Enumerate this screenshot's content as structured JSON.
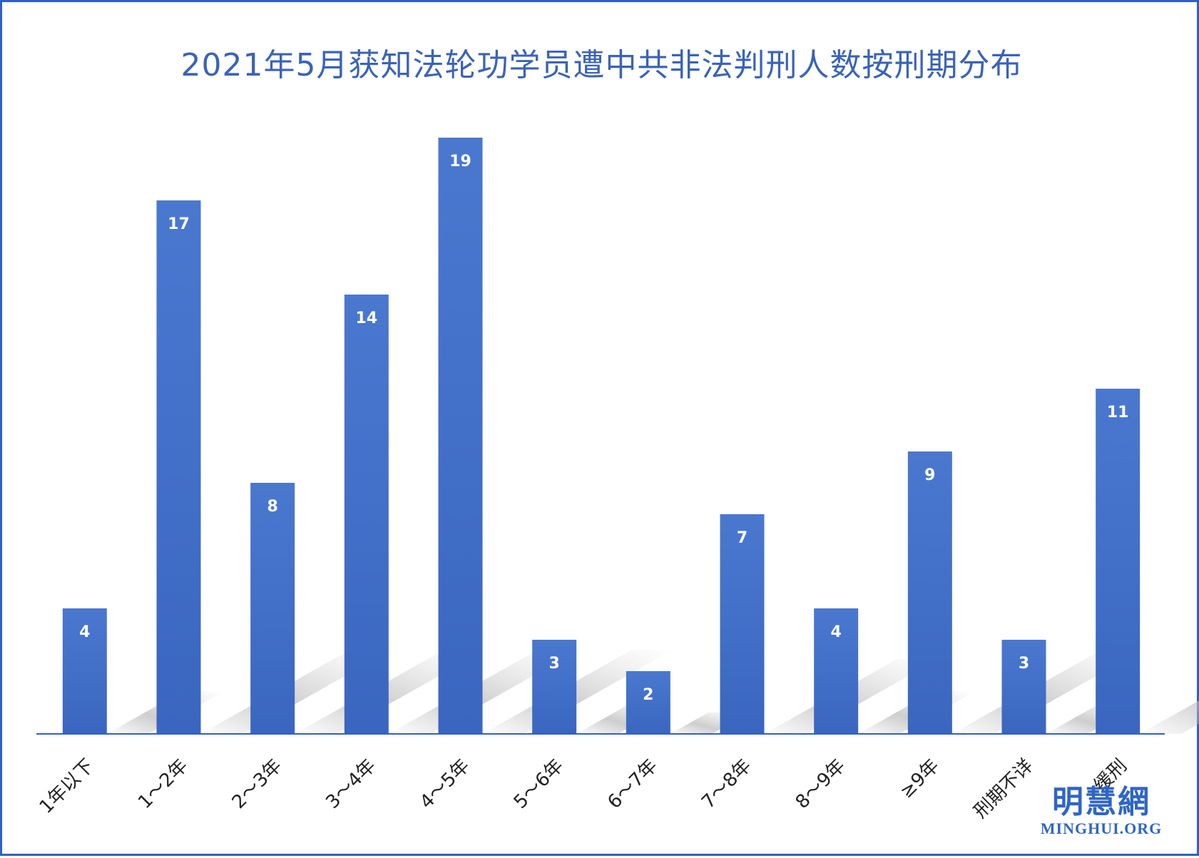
{
  "chart_data": {
    "type": "bar",
    "title": "2021年5月获知法轮功学员遭中共非法判刑人数按刑期分布",
    "categories": [
      "1年以下",
      "1～2年",
      "2～3年",
      "3～4年",
      "4～5年",
      "5～6年",
      "6～7年",
      "7～8年",
      "8～9年",
      "≥9年",
      "刑期不详",
      "缓刑"
    ],
    "values": [
      4,
      17,
      8,
      14,
      19,
      3,
      2,
      7,
      4,
      9,
      3,
      11
    ],
    "ylim": [
      0,
      19
    ],
    "grid": false,
    "legend": "none",
    "data_labels": true,
    "bar_color": "#3a66c0",
    "bar_color_top": "#4a78cf",
    "axis_color": "#2f5fc8"
  },
  "watermark": {
    "cn": "明慧網",
    "en": "MINGHUI.ORG"
  }
}
